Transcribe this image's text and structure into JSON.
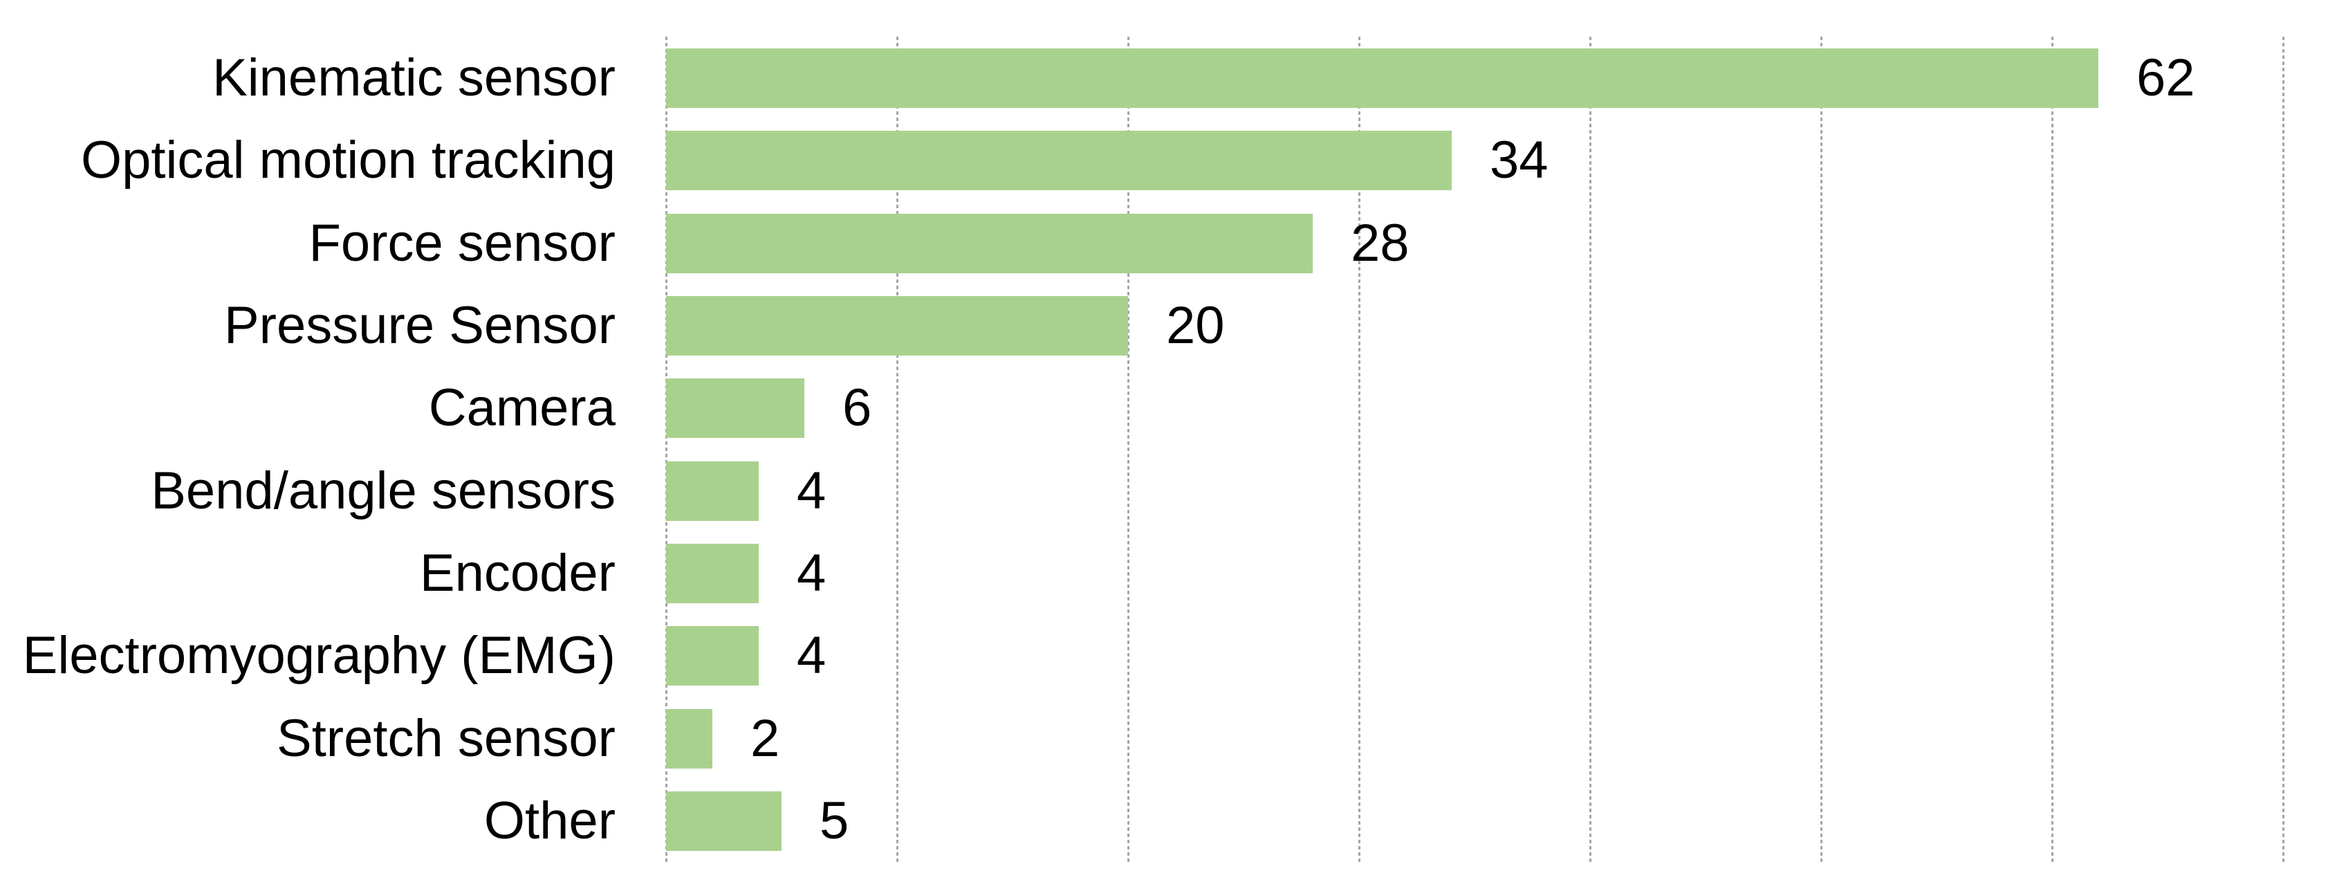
{
  "chart_data": {
    "type": "bar",
    "orientation": "horizontal",
    "title": "",
    "xlabel": "",
    "ylabel": "",
    "categories": [
      "Kinematic sensor",
      "Optical motion tracking",
      "Force sensor",
      "Pressure Sensor",
      "Camera",
      "Bend/angle sensors",
      "Encoder",
      "Electromyography (EMG)",
      "Stretch sensor",
      "Other"
    ],
    "values": [
      62,
      34,
      28,
      20,
      6,
      4,
      4,
      4,
      2,
      5
    ],
    "data_labels_shown": true,
    "xlim": [
      0,
      72
    ],
    "gridline_step": 10,
    "grid": true,
    "legend": "none",
    "bar_color": "#a9d18e",
    "gridline_color": "#a6a6a6",
    "background_color": "#ffffff",
    "text_color": "#000000"
  }
}
